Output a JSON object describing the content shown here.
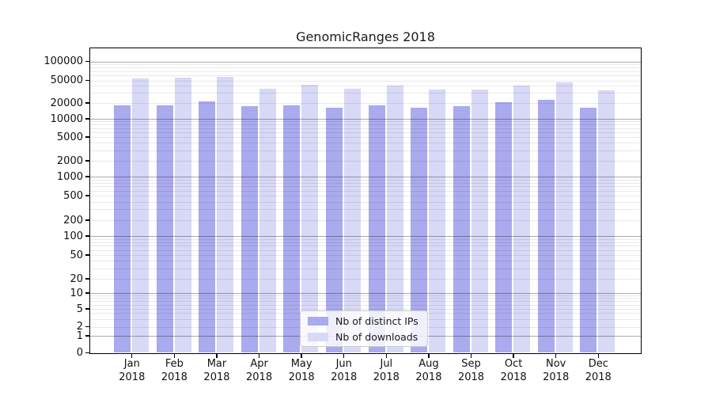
{
  "title": "GenomicRanges 2018",
  "y_axis": {
    "tick_labels": [
      "0",
      "1",
      "2",
      "5",
      "10",
      "20",
      "50",
      "100",
      "200",
      "500",
      "1000",
      "2000",
      "5000",
      "10000",
      "20000",
      "50000",
      "100000"
    ]
  },
  "x_axis": {
    "ticks": [
      {
        "month": "Jan",
        "year": "2018"
      },
      {
        "month": "Feb",
        "year": "2018"
      },
      {
        "month": "Mar",
        "year": "2018"
      },
      {
        "month": "Apr",
        "year": "2018"
      },
      {
        "month": "May",
        "year": "2018"
      },
      {
        "month": "Jun",
        "year": "2018"
      },
      {
        "month": "Jul",
        "year": "2018"
      },
      {
        "month": "Aug",
        "year": "2018"
      },
      {
        "month": "Sep",
        "year": "2018"
      },
      {
        "month": "Oct",
        "year": "2018"
      },
      {
        "month": "Nov",
        "year": "2018"
      },
      {
        "month": "Dec",
        "year": "2018"
      }
    ]
  },
  "legend": {
    "items": [
      {
        "label": "Nb of distinct IPs",
        "color": "#aaaaee"
      },
      {
        "label": "Nb of downloads",
        "color": "#d8d8f7"
      }
    ]
  },
  "chart_data": {
    "type": "bar",
    "title": "GenomicRanges 2018",
    "categories": [
      "Jan 2018",
      "Feb 2018",
      "Mar 2018",
      "Apr 2018",
      "May 2018",
      "Jun 2018",
      "Jul 2018",
      "Aug 2018",
      "Sep 2018",
      "Oct 2018",
      "Nov 2018",
      "Dec 2018"
    ],
    "series": [
      {
        "name": "Nb of distinct IPs",
        "color": "#aaaaee",
        "values": [
          18200,
          18200,
          21500,
          17200,
          17800,
          16400,
          17800,
          16400,
          17200,
          20500,
          22700,
          16200
        ]
      },
      {
        "name": "Nb of downloads",
        "color": "#d8d8f7",
        "values": [
          53700,
          54900,
          56500,
          35300,
          42300,
          35300,
          40200,
          34200,
          34200,
          41000,
          46100,
          33100
        ]
      }
    ],
    "y_ticks": [
      0,
      1,
      2,
      5,
      10,
      20,
      50,
      100,
      200,
      500,
      1000,
      2000,
      5000,
      10000,
      20000,
      50000,
      100000
    ],
    "y_scale": "symlog",
    "ylim": [
      0,
      130000
    ],
    "xlabel": "",
    "ylabel": "",
    "grid": "horizontal log gridlines, major at powers of 10",
    "legend_position": "lower center"
  }
}
